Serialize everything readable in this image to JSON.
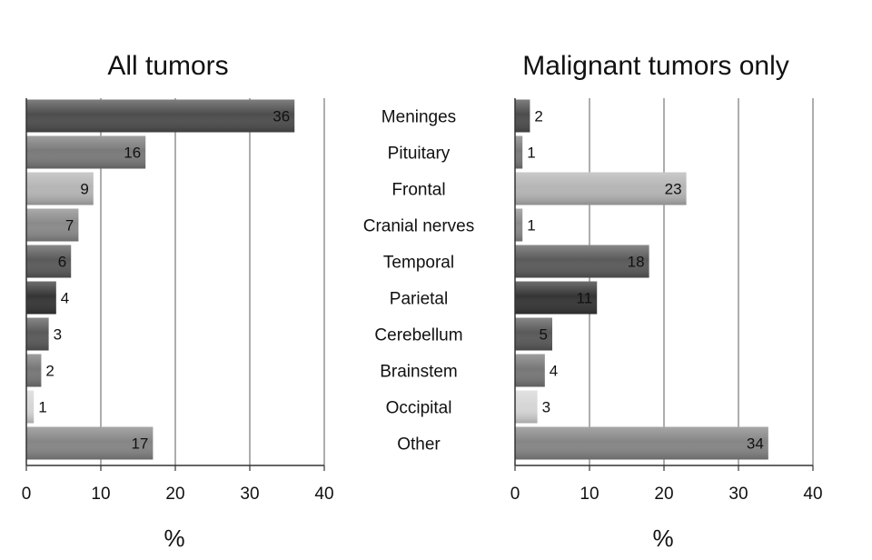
{
  "chart_data": [
    {
      "type": "bar",
      "orientation": "horizontal",
      "title": "All tumors",
      "xlabel": "%",
      "ylabel": "",
      "categories": [
        "Meninges",
        "Pituitary",
        "Frontal",
        "Cranial nerves",
        "Temporal",
        "Parietal",
        "Cerebellum",
        "Brainstem",
        "Occipital",
        "Other"
      ],
      "values": [
        36,
        16,
        9,
        7,
        6,
        4,
        3,
        2,
        1,
        17
      ],
      "xlim": [
        0,
        40
      ],
      "ticks": [
        "0",
        "10",
        "20",
        "30",
        "40"
      ],
      "grid": true,
      "bar_colors": [
        "#4d4d4d",
        "#7a7a7a",
        "#b5b5b5",
        "#8a8a8a",
        "#5a5a5a",
        "#353535",
        "#595959",
        "#777777",
        "#d6d6d6",
        "#858585"
      ]
    },
    {
      "type": "bar",
      "orientation": "horizontal",
      "title": "Malignant tumors only",
      "xlabel": "%",
      "ylabel": "",
      "categories": [
        "Meninges",
        "Pituitary",
        "Frontal",
        "Cranial nerves",
        "Temporal",
        "Parietal",
        "Cerebellum",
        "Brainstem",
        "Occipital",
        "Other"
      ],
      "values": [
        2,
        1,
        23,
        1,
        18,
        11,
        5,
        4,
        3,
        34
      ],
      "xlim": [
        0,
        40
      ],
      "ticks": [
        "0",
        "10",
        "20",
        "30",
        "40"
      ],
      "grid": true,
      "bar_colors": [
        "#4d4d4d",
        "#7a7a7a",
        "#b5b5b5",
        "#8a8a8a",
        "#5a5a5a",
        "#353535",
        "#595959",
        "#777777",
        "#d6d6d6",
        "#858585"
      ]
    }
  ]
}
